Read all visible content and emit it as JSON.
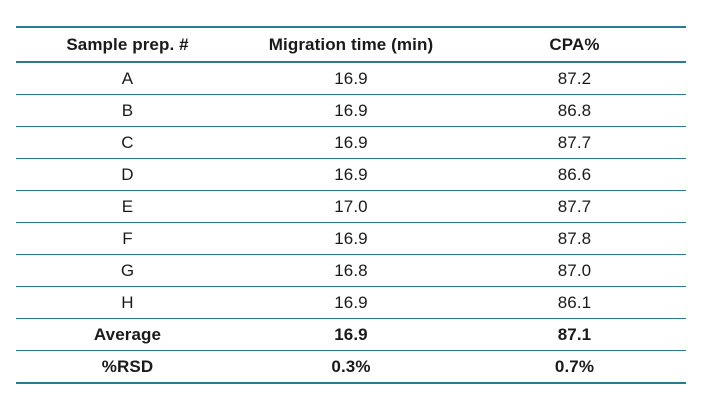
{
  "table": {
    "headers": [
      "Sample prep. #",
      "Migration time (min)",
      "CPA%"
    ],
    "rows": [
      [
        "A",
        "16.9",
        "87.2"
      ],
      [
        "B",
        "16.9",
        "86.8"
      ],
      [
        "C",
        "16.9",
        "87.7"
      ],
      [
        "D",
        "16.9",
        "86.6"
      ],
      [
        "E",
        "17.0",
        "87.7"
      ],
      [
        "F",
        "16.9",
        "87.8"
      ],
      [
        "G",
        "16.8",
        "87.0"
      ],
      [
        "H",
        "16.9",
        "86.1"
      ]
    ],
    "summary_rows": [
      [
        "Average",
        "16.9",
        "87.1"
      ],
      [
        "%RSD",
        "0.3%",
        "0.7%"
      ]
    ],
    "rule_color": "#2a7a92"
  }
}
